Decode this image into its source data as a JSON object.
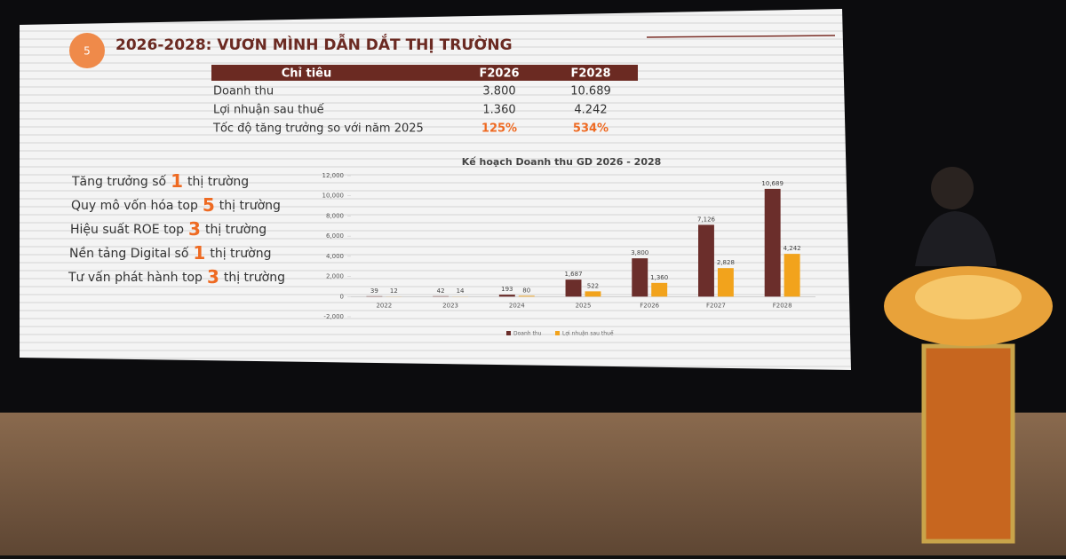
{
  "slide": {
    "number": "5",
    "title": "2026-2028: VƯƠN MÌNH DẪN DẮT THỊ TRƯỜNG",
    "table": {
      "header": [
        "Chỉ tiêu",
        "F2026",
        "F2028"
      ],
      "rows": [
        [
          "Doanh thu",
          "3.800",
          "10.689"
        ],
        [
          "Lợi nhuận sau thuế",
          "1.360",
          "4.242"
        ],
        [
          "Tốc độ tăng trưởng so với năm 2025",
          "125%",
          "534%"
        ]
      ]
    },
    "highlights": [
      {
        "before": "Tăng trưởng số",
        "number": "1",
        "after": "thị trường"
      },
      {
        "before": "Quy mô vốn hóa top",
        "number": "5",
        "after": "thị trường"
      },
      {
        "before": "Hiệu suất ROE top",
        "number": "3",
        "after": "thị trường"
      },
      {
        "before": "Nền tảng Digital số",
        "number": "1",
        "after": "thị trường"
      },
      {
        "before": "Tư vấn phát hành top",
        "number": "3",
        "after": "thị trường"
      }
    ]
  },
  "chart_data": {
    "type": "bar",
    "title": "Kế hoạch Doanh thu GD 2026 - 2028",
    "categories": [
      "2022",
      "2023",
      "2024",
      "2025",
      "F2026",
      "F2027",
      "F2028"
    ],
    "series": [
      {
        "name": "Doanh thu",
        "color": "#6b2e2b",
        "values": [
          39,
          42,
          193,
          1687,
          3800,
          7126,
          10689
        ],
        "value_labels": [
          "39",
          "42",
          "193",
          "1,687",
          "3,800",
          "7,126",
          "10,689"
        ]
      },
      {
        "name": "Lợi nhuận sau thuế",
        "color": "#f2a31c",
        "values": [
          12,
          14,
          80,
          522,
          1360,
          2828,
          4242
        ],
        "value_labels": [
          "12",
          "14",
          "80",
          "522",
          "1,360",
          "2,828",
          "4,242"
        ]
      }
    ],
    "ylim": [
      -2000,
      12000
    ],
    "yticks": [
      {
        "value": -2000,
        "label": "-2,000"
      },
      0,
      {
        "value": 2000,
        "label": "2,000"
      },
      {
        "value": 4000,
        "label": "4,000"
      },
      {
        "value": 6000,
        "label": "6,000"
      },
      {
        "value": 8000,
        "label": "8,000"
      },
      {
        "value": 10000,
        "label": "10,000"
      },
      {
        "value": 12000,
        "label": "12,000"
      }
    ],
    "legend": "bottom"
  }
}
